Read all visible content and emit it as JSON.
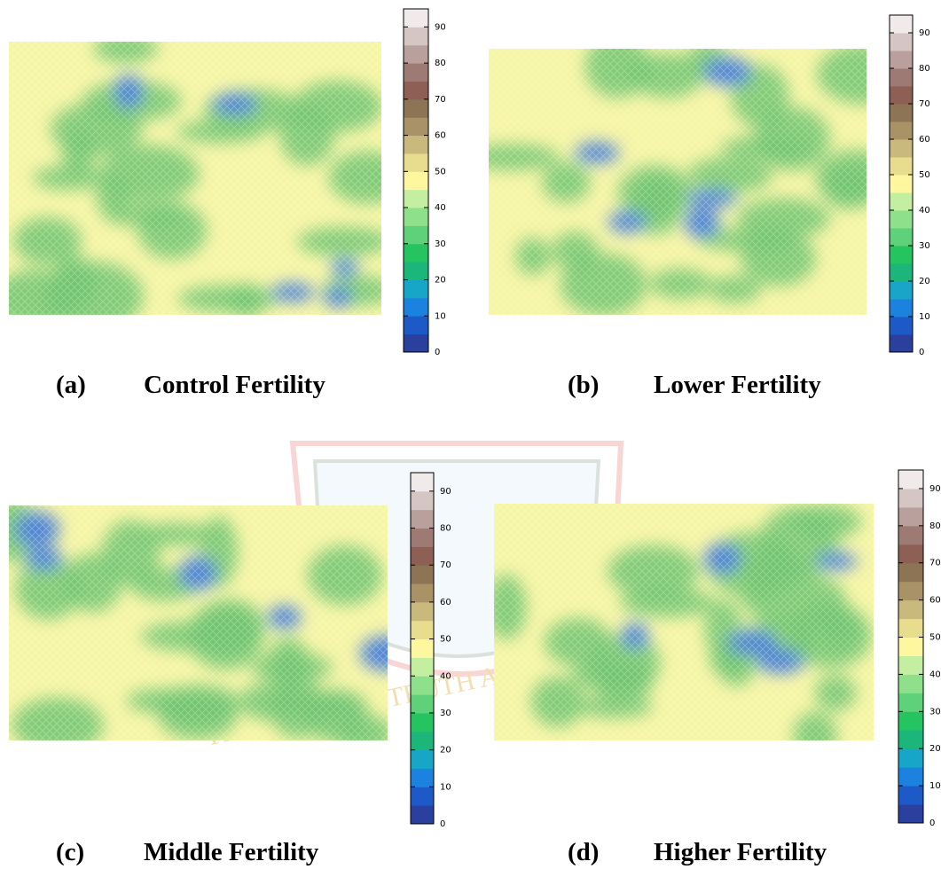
{
  "panels": [
    {
      "label": "(a)",
      "title": "Control Fertility",
      "colorbar": {
        "lim": [
          0,
          95
        ],
        "ticks": [
          0,
          10,
          20,
          30,
          40,
          50,
          60,
          70,
          80,
          90
        ]
      }
    },
    {
      "label": "(b)",
      "title": "Lower Fertility",
      "colorbar": {
        "lim": [
          0,
          95
        ],
        "ticks": [
          0,
          10,
          20,
          30,
          40,
          50,
          60,
          70,
          80,
          90
        ]
      }
    },
    {
      "label": "(c)",
      "title": "Middle Fertility",
      "colorbar": {
        "lim": [
          0,
          95
        ],
        "ticks": [
          0,
          10,
          20,
          30,
          40,
          50,
          60,
          70,
          80,
          90
        ]
      }
    },
    {
      "label": "(d)",
      "title": "Higher Fertility",
      "colorbar": {
        "lim": [
          0,
          95
        ],
        "ticks": [
          0,
          10,
          20,
          30,
          40,
          50,
          60,
          70,
          80,
          90
        ]
      }
    }
  ],
  "colors": [
    "#2b3f9e",
    "#1d5ac8",
    "#1b82e0",
    "#17a5c8",
    "#1cb57a",
    "#25c460",
    "#5fd17a",
    "#8ee08a",
    "#c4eea0",
    "#fff7a0",
    "#e8dc8e",
    "#c9b97c",
    "#a99265",
    "#8c7455",
    "#8e5f55",
    "#9e7a74",
    "#b9a09c",
    "#d5c5c3",
    "#f0eaea"
  ],
  "watermark": "KNOWLEDGE, TRUTH AND EXCELLENCE"
}
